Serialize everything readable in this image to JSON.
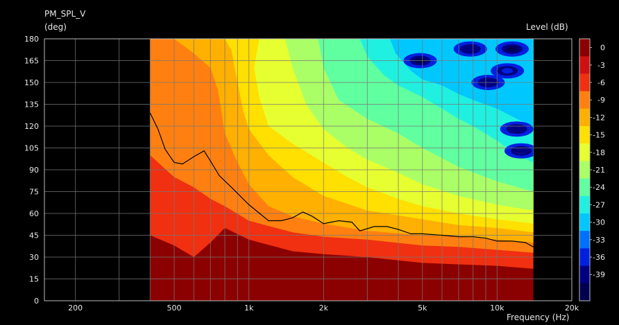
{
  "chart_data": {
    "type": "heatmap",
    "title": "PM_SPL_V",
    "y_unit_label": "(deg)",
    "colorbar_title": "Level  (dB)",
    "xlabel": "Frequency  (Hz)",
    "x_scale": "log",
    "x_range": [
      150,
      20000
    ],
    "y_range": [
      0,
      180
    ],
    "x_ticks": [
      {
        "value": 200,
        "label": "200"
      },
      {
        "value": 500,
        "label": "500"
      },
      {
        "value": 1000,
        "label": "1k"
      },
      {
        "value": 2000,
        "label": "2k"
      },
      {
        "value": 5000,
        "label": "5k"
      },
      {
        "value": 10000,
        "label": "10k"
      },
      {
        "value": 20000,
        "label": "20k"
      }
    ],
    "y_ticks": [
      0,
      15,
      30,
      45,
      60,
      75,
      90,
      105,
      120,
      135,
      150,
      165,
      180
    ],
    "data_x_range": [
      400,
      14000
    ],
    "grid": true,
    "contour_levels": [
      0,
      -3,
      -6,
      -9,
      -12,
      -15,
      -18,
      -21,
      -24,
      -27,
      -30,
      -33,
      -36,
      -39
    ],
    "level_colors": [
      "#8b0000",
      "#d01010",
      "#f03010",
      "#ff8010",
      "#ffb000",
      "#ffe000",
      "#e6ff30",
      "#aaff66",
      "#60ffa0",
      "#20f0e0",
      "#00c8ff",
      "#0070ff",
      "#0020e0",
      "#000080",
      "#000050"
    ],
    "contours": [
      {
        "level": -3,
        "points": [
          [
            400,
            45
          ],
          [
            500,
            38
          ],
          [
            600,
            30
          ],
          [
            700,
            40
          ],
          [
            800,
            50
          ],
          [
            1000,
            42
          ],
          [
            1500,
            34
          ],
          [
            2000,
            32
          ],
          [
            3000,
            30
          ],
          [
            5000,
            26
          ],
          [
            7000,
            25
          ],
          [
            10000,
            24
          ],
          [
            14000,
            22
          ]
        ]
      },
      {
        "level": -6,
        "points": [
          [
            400,
            100
          ],
          [
            450,
            92
          ],
          [
            500,
            85
          ],
          [
            600,
            78
          ],
          [
            700,
            70
          ],
          [
            800,
            65
          ],
          [
            1000,
            55
          ],
          [
            1500,
            47
          ],
          [
            2000,
            44
          ],
          [
            3000,
            42
          ],
          [
            5000,
            38
          ],
          [
            7000,
            37
          ],
          [
            10000,
            35
          ],
          [
            14000,
            33
          ]
        ]
      },
      {
        "level": -9,
        "points": [
          [
            400,
            180
          ],
          [
            500,
            180
          ],
          [
            600,
            170
          ],
          [
            700,
            160
          ],
          [
            750,
            145
          ],
          [
            800,
            115
          ],
          [
            900,
            95
          ],
          [
            1000,
            80
          ],
          [
            1200,
            65
          ],
          [
            1500,
            58
          ],
          [
            2000,
            53
          ],
          [
            3000,
            48
          ],
          [
            5000,
            45
          ],
          [
            7000,
            44
          ],
          [
            10000,
            42
          ],
          [
            14000,
            40
          ]
        ]
      },
      {
        "level": -12,
        "points": [
          [
            800,
            180
          ],
          [
            850,
            172
          ],
          [
            900,
            150
          ],
          [
            950,
            130
          ],
          [
            1000,
            118
          ],
          [
            1200,
            100
          ],
          [
            1500,
            85
          ],
          [
            2000,
            72
          ],
          [
            3000,
            62
          ],
          [
            5000,
            56
          ],
          [
            7000,
            52
          ],
          [
            10000,
            50
          ],
          [
            14000,
            47
          ]
        ]
      },
      {
        "level": -15,
        "points": [
          [
            1100,
            180
          ],
          [
            1050,
            160
          ],
          [
            1100,
            140
          ],
          [
            1200,
            120
          ],
          [
            1500,
            108
          ],
          [
            2000,
            95
          ],
          [
            2500,
            85
          ],
          [
            3000,
            78
          ],
          [
            4000,
            70
          ],
          [
            5000,
            65
          ],
          [
            7000,
            60
          ],
          [
            10000,
            56
          ],
          [
            14000,
            53
          ]
        ]
      },
      {
        "level": -18,
        "points": [
          [
            1400,
            180
          ],
          [
            1500,
            160
          ],
          [
            1700,
            135
          ],
          [
            2000,
            118
          ],
          [
            2500,
            105
          ],
          [
            3000,
            97
          ],
          [
            4000,
            88
          ],
          [
            5000,
            80
          ],
          [
            7000,
            72
          ],
          [
            10000,
            66
          ],
          [
            14000,
            62
          ]
        ]
      },
      {
        "level": -21,
        "points": [
          [
            1900,
            180
          ],
          [
            2000,
            160
          ],
          [
            2300,
            138
          ],
          [
            3000,
            125
          ],
          [
            4000,
            115
          ],
          [
            5000,
            105
          ],
          [
            6000,
            98
          ],
          [
            7000,
            92
          ],
          [
            10000,
            82
          ],
          [
            14000,
            75
          ]
        ]
      },
      {
        "level": -24,
        "points": [
          [
            2800,
            180
          ],
          [
            3000,
            168
          ],
          [
            3500,
            155
          ],
          [
            4000,
            148
          ],
          [
            5000,
            140
          ],
          [
            6000,
            132
          ],
          [
            7000,
            125
          ],
          [
            8000,
            120
          ],
          [
            10000,
            110
          ],
          [
            12000,
            100
          ],
          [
            14000,
            95
          ]
        ]
      },
      {
        "level": -27,
        "points": [
          [
            3700,
            180
          ],
          [
            3900,
            170
          ],
          [
            4500,
            158
          ],
          [
            5000,
            152
          ],
          [
            6000,
            148
          ],
          [
            7000,
            142
          ],
          [
            8000,
            138
          ],
          [
            10000,
            132
          ],
          [
            12000,
            125
          ],
          [
            14000,
            120
          ]
        ]
      }
    ],
    "deep_spots": [
      {
        "x": 4900,
        "y": 165,
        "level": -39
      },
      {
        "x": 7800,
        "y": 173,
        "level": -36
      },
      {
        "x": 11500,
        "y": 173,
        "level": -39
      },
      {
        "x": 9200,
        "y": 150,
        "level": -36
      },
      {
        "x": 11000,
        "y": 158,
        "level": -33
      },
      {
        "x": 12000,
        "y": 118,
        "level": -36
      },
      {
        "x": 12500,
        "y": 103,
        "level": -36
      }
    ],
    "line_series": {
      "level": -6,
      "points": [
        [
          400,
          129
        ],
        [
          430,
          118
        ],
        [
          460,
          104
        ],
        [
          500,
          95
        ],
        [
          540,
          94
        ],
        [
          600,
          99
        ],
        [
          660,
          103
        ],
        [
          700,
          96
        ],
        [
          760,
          86
        ],
        [
          850,
          78
        ],
        [
          1000,
          66
        ],
        [
          1200,
          55
        ],
        [
          1350,
          55
        ],
        [
          1500,
          57
        ],
        [
          1650,
          61
        ],
        [
          1800,
          58
        ],
        [
          2000,
          53
        ],
        [
          2300,
          55
        ],
        [
          2600,
          54
        ],
        [
          2800,
          48
        ],
        [
          3200,
          51
        ],
        [
          3600,
          51
        ],
        [
          4000,
          49
        ],
        [
          4500,
          46
        ],
        [
          5000,
          46
        ],
        [
          6000,
          45
        ],
        [
          7000,
          44
        ],
        [
          8000,
          44
        ],
        [
          9000,
          43
        ],
        [
          10000,
          41
        ],
        [
          11500,
          41
        ],
        [
          13000,
          40
        ],
        [
          14000,
          37
        ]
      ]
    },
    "colorbar_ticks": [
      "0",
      "-3",
      "-6",
      "-9",
      "-12",
      "-15",
      "-18",
      "-21",
      "-24",
      "-27",
      "-30",
      "-33",
      "-36",
      "-39"
    ]
  }
}
